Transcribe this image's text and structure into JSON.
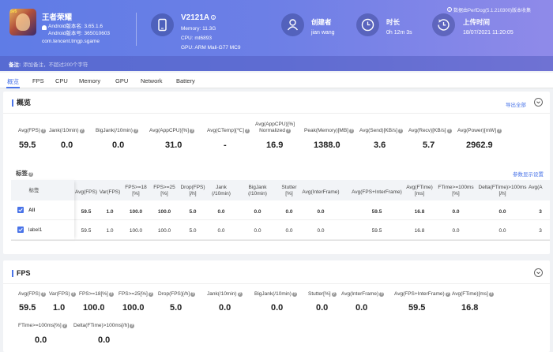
{
  "app": {
    "name": "王者荣耀",
    "icon_badge": "5v5",
    "android_version": "Android版本名: 3.65.1.6",
    "android_code": "Android版本号: 365010603",
    "package": "com.tencent.tmgp.sgame"
  },
  "device": {
    "model": "V2121A",
    "memory": "Memory: 11.3G",
    "cpu": "CPU: mt6893",
    "gpu": "GPU: ARM Mali-G77 MC9"
  },
  "creator": {
    "label": "创建者",
    "value": "jian wang"
  },
  "duration": {
    "label": "时长",
    "value": "0h 12m 3s"
  },
  "upload": {
    "label": "上传时间",
    "value": "18/07/2021 11:20:05"
  },
  "data_source": "数据由PerfDog(5.1.210300)版本收集",
  "note": {
    "label": "备注:",
    "placeholder": "添加备注，不超过200个字符"
  },
  "tabs": [
    "概览",
    "FPS",
    "CPU",
    "Memory",
    "GPU",
    "Network",
    "Battery"
  ],
  "overview": {
    "title": "概览",
    "export": "导出全部",
    "metrics": [
      {
        "label": "Avg(FPS)",
        "value": "59.5"
      },
      {
        "label": "Jank(/10min)",
        "value": "0.0"
      },
      {
        "label": "BigJank(/10min)",
        "value": "0.0"
      },
      {
        "label": "Avg(AppCPU)[%]",
        "value": "31.0"
      },
      {
        "label": "Avg(CTemp)[℃]",
        "value": "-"
      },
      {
        "label": "Avg(AppCPU)[%]",
        "label2": "Normalized",
        "value": "16.9"
      },
      {
        "label": "Peak(Memory)[MB]",
        "value": "1388.0"
      },
      {
        "label": "Avg(Send)[KB/s]",
        "value": "3.6"
      },
      {
        "label": "Avg(Recv)[KB/s]",
        "value": "5.7"
      },
      {
        "label": "Avg(Power)[mW]",
        "value": "2962.9"
      }
    ],
    "tags_title": "标签",
    "settings": "参数显示设置",
    "table": {
      "columns": [
        {
          "l1": "标签"
        },
        {
          "l1": "Avg(FPS)"
        },
        {
          "l1": "Var(FPS)"
        },
        {
          "l1": "FPS>=18",
          "l2": "[%]"
        },
        {
          "l1": "FPS>=25",
          "l2": "[%]"
        },
        {
          "l1": "Drop(FPS)",
          "l2": "[/h]"
        },
        {
          "l1": "Jank",
          "l2": "(/10min)"
        },
        {
          "l1": "BigJank",
          "l2": "(/10min)"
        },
        {
          "l1": "Stutter",
          "l2": "[%]"
        },
        {
          "l1": "Avg(InterFrame)"
        },
        {
          "l1": "Avg(FPS+InterFrame)"
        },
        {
          "l1": "Avg(FTime)",
          "l2": "[ms]"
        },
        {
          "l1": "FTime>=100ms",
          "l2": "[%]"
        },
        {
          "l1": "Delta(FTime)>100ms",
          "l2": "[/h]"
        },
        {
          "l1": "Avg(A"
        }
      ],
      "rows": [
        {
          "label": "All",
          "values": [
            "59.5",
            "1.0",
            "100.0",
            "100.0",
            "5.0",
            "0.0",
            "0.0",
            "0.0",
            "0.0",
            "59.5",
            "16.8",
            "0.0",
            "0.0",
            "3"
          ]
        },
        {
          "label": "label1",
          "values": [
            "59.5",
            "1.0",
            "100.0",
            "100.0",
            "5.0",
            "0.0",
            "0.0",
            "0.0",
            "0.0",
            "59.5",
            "16.8",
            "0.0",
            "0.0",
            "3"
          ]
        }
      ]
    }
  },
  "fps": {
    "title": "FPS",
    "metrics_row1": [
      {
        "label": "Avg(FPS)",
        "value": "59.5"
      },
      {
        "label": "Var(FPS)",
        "value": "1.0"
      },
      {
        "label": "FPS>=18[%]",
        "value": "100.0"
      },
      {
        "label": "FPS>=25[%]",
        "value": "100.0"
      },
      {
        "label": "Drop(FPS)[/h]",
        "value": "5.0"
      },
      {
        "label": "Jank(/10min)",
        "value": "0.0"
      },
      {
        "label": "BigJank(/10min)",
        "value": "0.0"
      },
      {
        "label": "Stutter[%]",
        "value": "0.0"
      },
      {
        "label": "Avg(InterFrame)",
        "value": "0.0"
      },
      {
        "label": "Avg(FPS+InterFrame)",
        "value": "59.5"
      },
      {
        "label": "Avg(FTime)[ms]",
        "value": "16.8"
      }
    ],
    "metrics_row2": [
      {
        "label": "FTime>=100ms[%]",
        "value": "0.0"
      },
      {
        "label": "Delta(FTime)>100ms[/h]",
        "value": "0.0"
      }
    ]
  }
}
